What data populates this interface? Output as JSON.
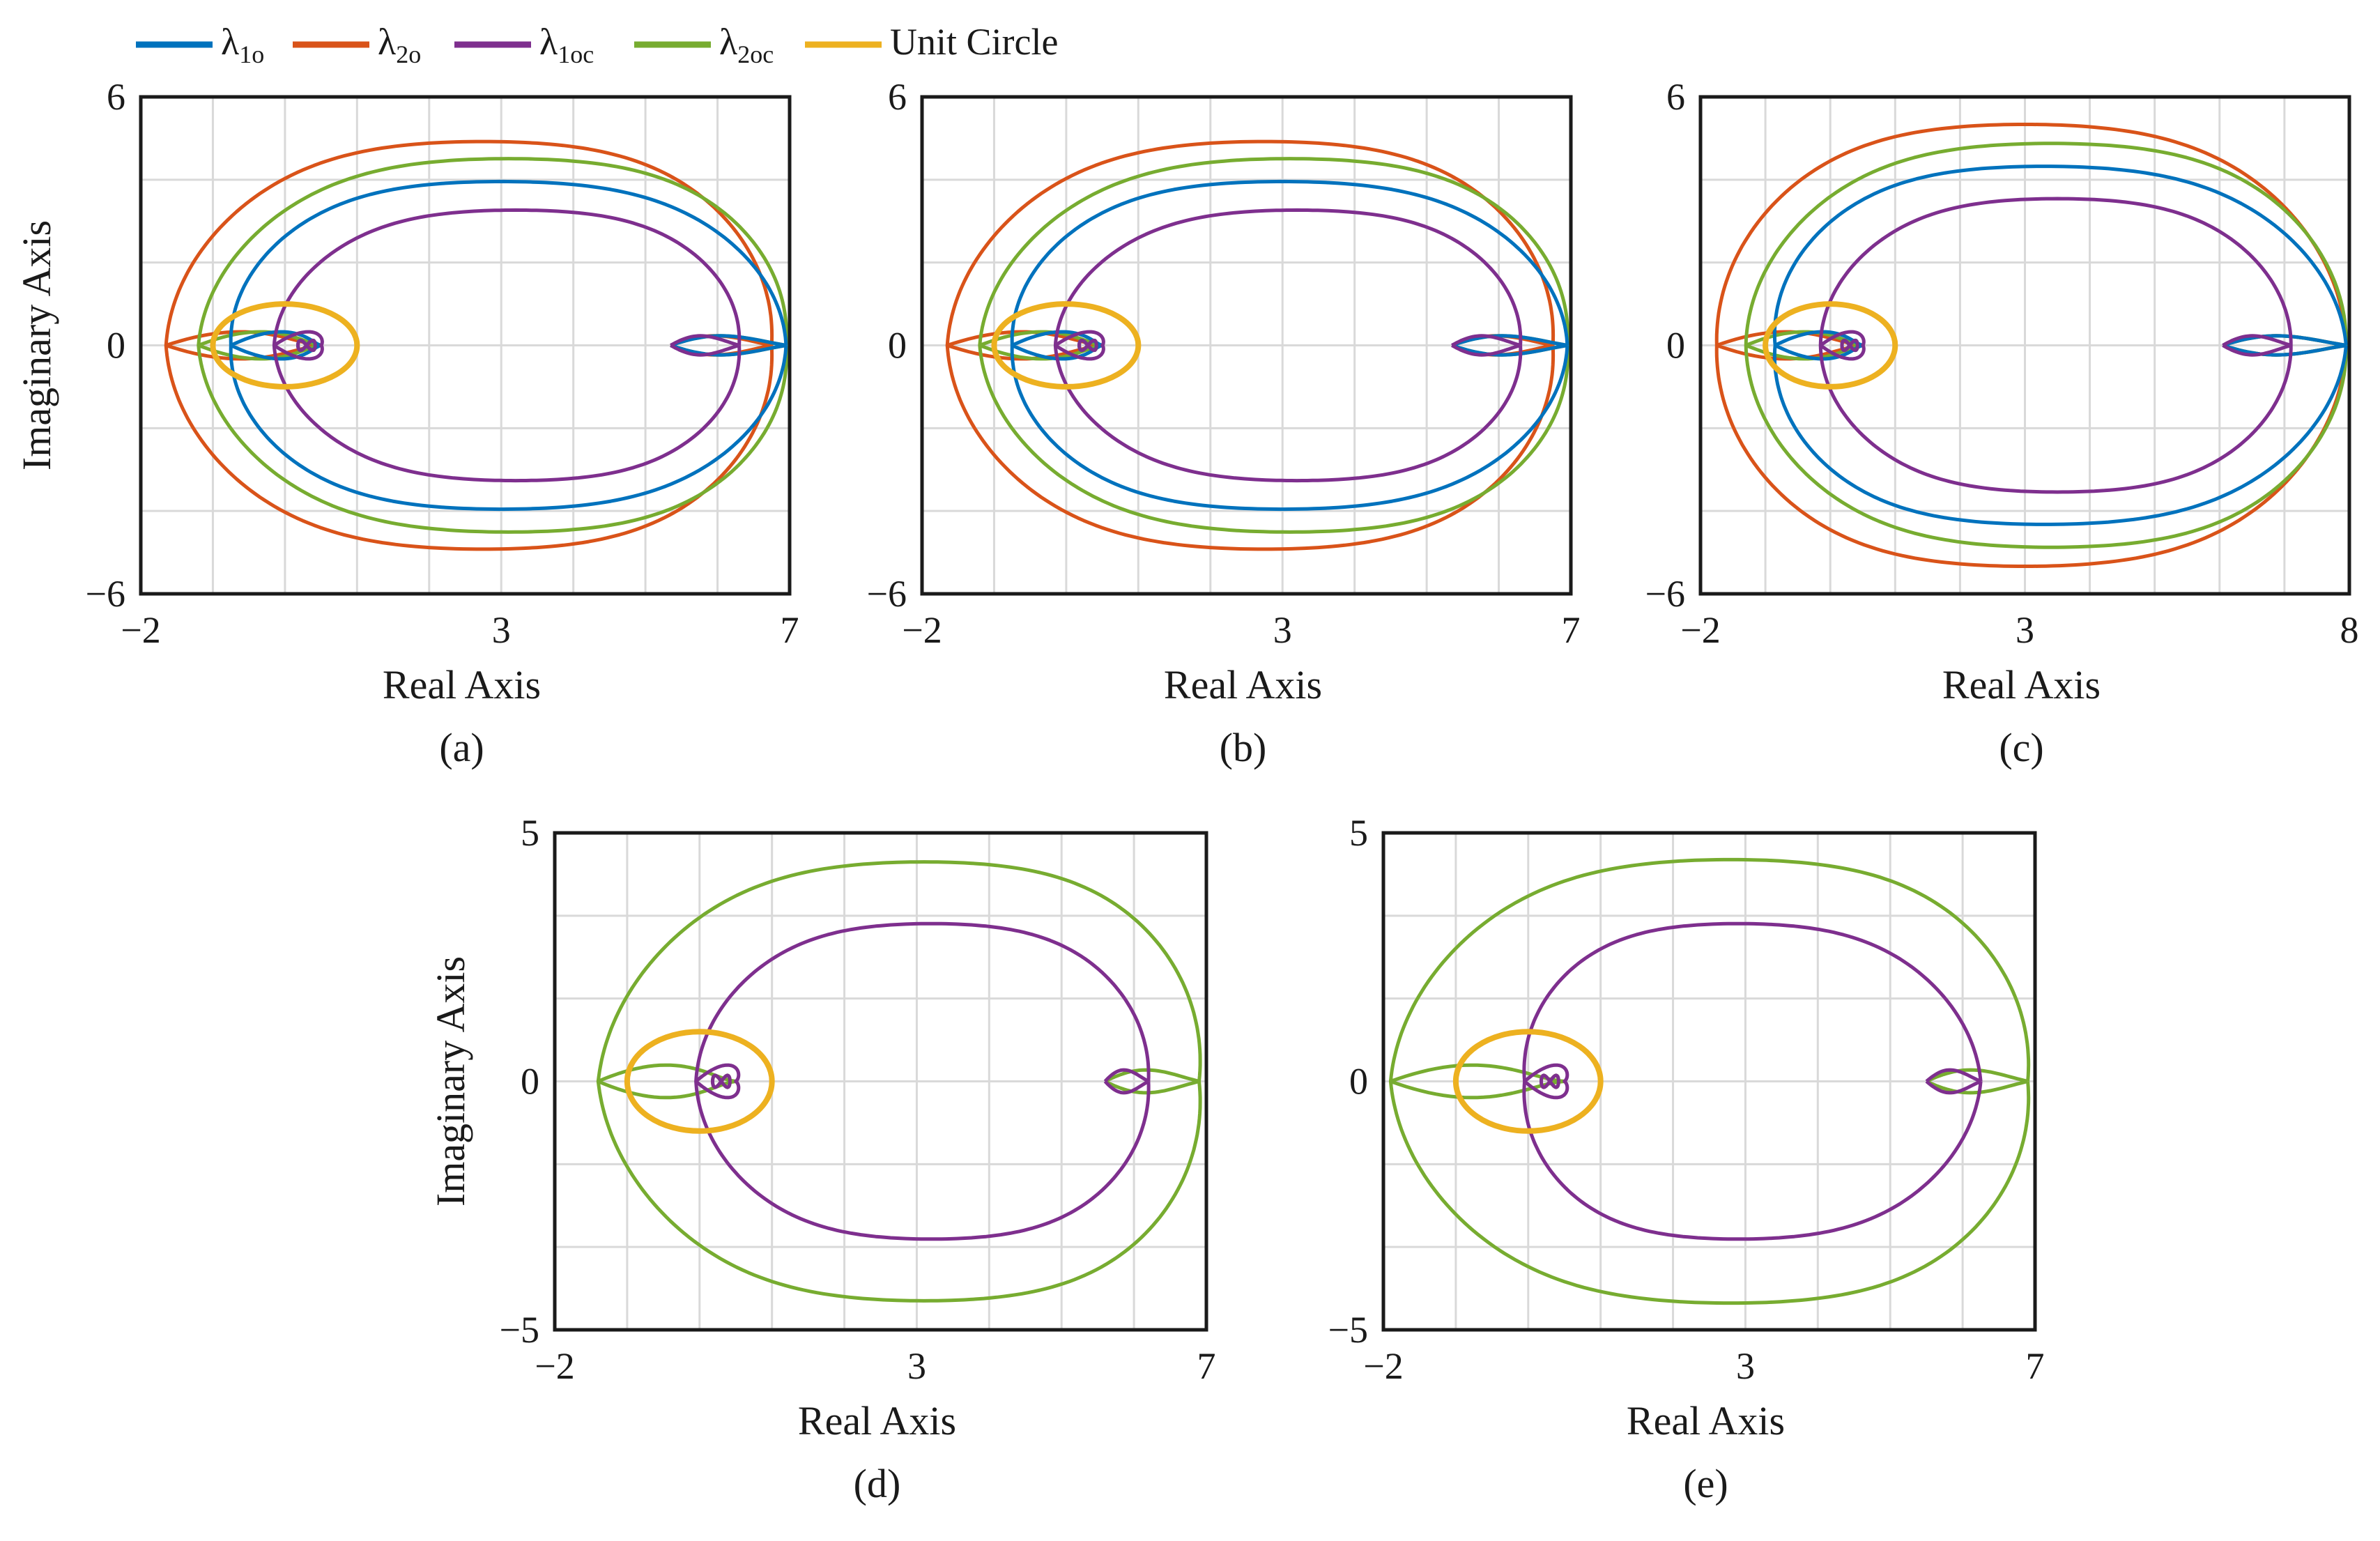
{
  "figure": {
    "legend": [
      {
        "key": "l1o",
        "base": "λ",
        "sub": "1o",
        "color": "#0072BD"
      },
      {
        "key": "l2o",
        "base": "λ",
        "sub": "2o",
        "color": "#D95319"
      },
      {
        "key": "l1oc",
        "base": "λ",
        "sub": "1oc",
        "color": "#7E2F8E"
      },
      {
        "key": "l2oc",
        "base": "λ",
        "sub": "2oc",
        "color": "#77AC30"
      },
      {
        "key": "unit",
        "base": "Unit Circle",
        "sub": "",
        "color": "#EDB120"
      }
    ]
  },
  "chart_data": [
    {
      "id": "a",
      "type": "line",
      "caption": "(a)",
      "xlabel": "Real Axis",
      "ylabel": "Imaginary Axis",
      "xlim": [
        -2,
        7
      ],
      "ylim": [
        -6,
        6
      ],
      "xticks": [
        -2,
        3,
        7
      ],
      "yticks": [
        -6,
        0,
        6
      ],
      "grid": true,
      "series": [
        {
          "name": "λ2o",
          "color": "#D95319",
          "type": "nyquist",
          "leftX": -1.65,
          "rightX": 6.75,
          "height": 5.35,
          "topX": 2.75,
          "lobeStart": 5.35,
          "lobeSize": 0.3
        },
        {
          "name": "λ2oc",
          "color": "#77AC30",
          "type": "nyquist",
          "leftX": -1.2,
          "rightX": 6.95,
          "height": 4.9,
          "topX": 3.1,
          "lobeStart": 5.35,
          "lobeSize": 0.3
        },
        {
          "name": "λ1o",
          "color": "#0072BD",
          "type": "nyquist",
          "leftX": -0.75,
          "rightX": 6.95,
          "height": 4.3,
          "topX": 3.0,
          "lobeStart": 5.35,
          "lobeSize": 0.3
        },
        {
          "name": "λ1oc",
          "color": "#7E2F8E",
          "type": "nyquist",
          "leftX": -0.15,
          "rightX": 6.3,
          "height": 3.55,
          "topX": 3.2,
          "lobeStart": 5.35,
          "lobeSize": 0.3
        },
        {
          "name": "Unit Circle",
          "color": "#EDB120",
          "type": "circle",
          "cx": 0,
          "cy": 0,
          "r": 1
        }
      ]
    },
    {
      "id": "b",
      "type": "line",
      "caption": "(b)",
      "xlabel": "Real Axis",
      "ylabel": "",
      "xlim": [
        -2,
        7
      ],
      "ylim": [
        -6,
        6
      ],
      "xticks": [
        -2,
        3,
        7
      ],
      "yticks": [
        -6,
        0,
        6
      ],
      "grid": true,
      "series": [
        {
          "name": "λ2o",
          "color": "#D95319",
          "type": "nyquist",
          "leftX": -1.65,
          "rightX": 6.75,
          "height": 5.35,
          "topX": 2.75,
          "lobeStart": 5.35,
          "lobeSize": 0.3
        },
        {
          "name": "λ2oc",
          "color": "#77AC30",
          "type": "nyquist",
          "leftX": -1.2,
          "rightX": 6.95,
          "height": 4.9,
          "topX": 3.1,
          "lobeStart": 5.35,
          "lobeSize": 0.3
        },
        {
          "name": "λ1o",
          "color": "#0072BD",
          "type": "nyquist",
          "leftX": -0.75,
          "rightX": 6.95,
          "height": 4.3,
          "topX": 3.0,
          "lobeStart": 5.35,
          "lobeSize": 0.3
        },
        {
          "name": "λ1oc",
          "color": "#7E2F8E",
          "type": "nyquist",
          "leftX": -0.15,
          "rightX": 6.3,
          "height": 3.55,
          "topX": 3.2,
          "lobeStart": 5.35,
          "lobeSize": 0.3
        },
        {
          "name": "Unit Circle",
          "color": "#EDB120",
          "type": "circle",
          "cx": 0,
          "cy": 0,
          "r": 1
        }
      ]
    },
    {
      "id": "c",
      "type": "line",
      "caption": "(c)",
      "xlabel": "Real Axis",
      "ylabel": "",
      "xlim": [
        -2,
        8
      ],
      "ylim": [
        -6,
        6
      ],
      "xticks": [
        -2,
        3,
        8
      ],
      "yticks": [
        -6,
        0,
        6
      ],
      "grid": true,
      "series": [
        {
          "name": "λ2o",
          "color": "#D95319",
          "type": "nyquist",
          "leftX": -1.75,
          "rightX": 7.95,
          "height": 5.8,
          "topX": 3.0,
          "lobeStart": 6.05,
          "lobeSize": 0.3
        },
        {
          "name": "λ2oc",
          "color": "#77AC30",
          "type": "nyquist",
          "leftX": -1.3,
          "rightX": 7.95,
          "height": 5.3,
          "topX": 3.4,
          "lobeStart": 6.05,
          "lobeSize": 0.3
        },
        {
          "name": "λ1o",
          "color": "#0072BD",
          "type": "nyquist",
          "leftX": -0.85,
          "rightX": 7.95,
          "height": 4.7,
          "topX": 3.3,
          "lobeStart": 6.05,
          "lobeSize": 0.3
        },
        {
          "name": "λ1oc",
          "color": "#7E2F8E",
          "type": "nyquist",
          "leftX": -0.15,
          "rightX": 7.1,
          "height": 3.85,
          "topX": 3.5,
          "lobeStart": 6.05,
          "lobeSize": 0.3
        },
        {
          "name": "Unit Circle",
          "color": "#EDB120",
          "type": "circle",
          "cx": 0,
          "cy": 0,
          "r": 1
        }
      ]
    },
    {
      "id": "d",
      "type": "line",
      "caption": "(d)",
      "xlabel": "Real Axis",
      "ylabel": "Imaginary Axis",
      "xlim": [
        -2,
        7
      ],
      "ylim": [
        -5,
        5
      ],
      "xticks": [
        -2,
        3,
        7
      ],
      "yticks": [
        -5,
        0,
        5
      ],
      "grid": true,
      "series": [
        {
          "name": "λ2oc",
          "color": "#77AC30",
          "type": "nyquist",
          "leftX": -1.4,
          "rightX": 6.9,
          "height": 4.8,
          "topX": 3.1,
          "lobeStart": 5.6,
          "lobeSize": 0.3
        },
        {
          "name": "λ1oc",
          "color": "#7E2F8E",
          "type": "nyquist",
          "leftX": -0.05,
          "rightX": 6.2,
          "height": 3.45,
          "topX": 3.2,
          "lobeStart": 5.6,
          "lobeSize": 0.3
        },
        {
          "name": "Unit Circle",
          "color": "#EDB120",
          "type": "circle",
          "cx": 0,
          "cy": 0,
          "r": 1
        }
      ]
    },
    {
      "id": "e",
      "type": "line",
      "caption": "(e)",
      "xlabel": "Real Axis",
      "ylabel": "",
      "xlim": [
        -2,
        7
      ],
      "ylim": [
        -5,
        5
      ],
      "xticks": [
        -2,
        3,
        7
      ],
      "yticks": [
        -5,
        0,
        5
      ],
      "grid": true,
      "series": [
        {
          "name": "λ2oc",
          "color": "#77AC30",
          "type": "nyquist",
          "leftX": -1.9,
          "rightX": 6.9,
          "height": 4.85,
          "topX": 2.8,
          "lobeStart": 5.5,
          "lobeSize": 0.3
        },
        {
          "name": "λ1oc",
          "color": "#7E2F8E",
          "type": "nyquist",
          "leftX": -0.05,
          "rightX": 6.25,
          "height": 3.45,
          "topX": 2.9,
          "lobeStart": 5.5,
          "lobeSize": 0.3
        },
        {
          "name": "Unit Circle",
          "color": "#EDB120",
          "type": "circle",
          "cx": 0,
          "cy": 0,
          "r": 1
        }
      ]
    }
  ]
}
